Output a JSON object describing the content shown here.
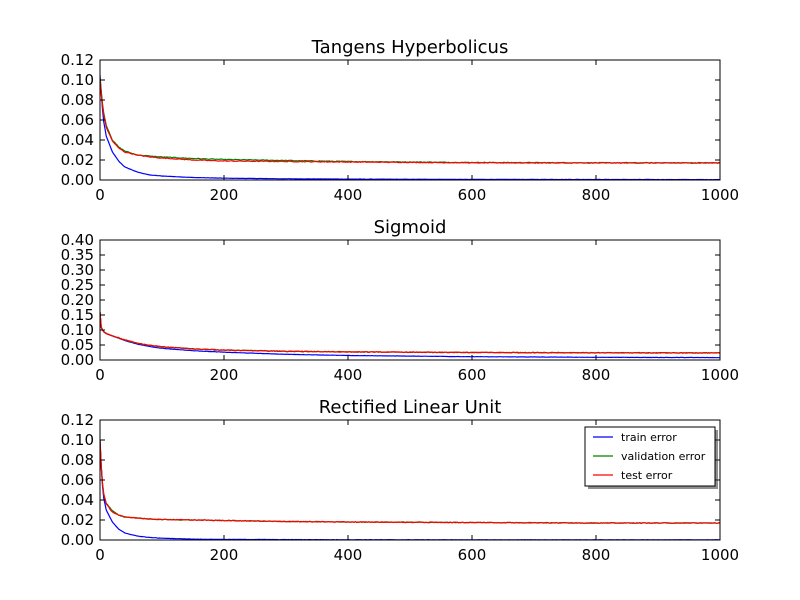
{
  "chart_data": [
    {
      "type": "line",
      "title": "Tangens Hyperbolicus",
      "xlabel": "",
      "ylabel": "",
      "xlim": [
        0,
        1000
      ],
      "ylim": [
        0,
        0.12
      ],
      "x_ticks": [
        0,
        200,
        400,
        600,
        800,
        1000
      ],
      "y_ticks": [
        0.0,
        0.02,
        0.04,
        0.06,
        0.08,
        0.1,
        0.12
      ],
      "y_tick_labels": [
        "0.00",
        "0.02",
        "0.04",
        "0.06",
        "0.08",
        "0.10",
        "0.12"
      ],
      "grid": false,
      "series": [
        {
          "name": "train error",
          "color": "#0000ff",
          "x": [
            0,
            5,
            10,
            20,
            30,
            40,
            60,
            80,
            100,
            150,
            200,
            300,
            400,
            600,
            800,
            1000
          ],
          "y": [
            0.105,
            0.062,
            0.044,
            0.028,
            0.019,
            0.013,
            0.008,
            0.005,
            0.004,
            0.0025,
            0.0018,
            0.0012,
            0.0009,
            0.0006,
            0.0005,
            0.0004
          ]
        },
        {
          "name": "validation error",
          "color": "#008000",
          "x": [
            0,
            5,
            10,
            20,
            30,
            40,
            60,
            80,
            100,
            150,
            200,
            300,
            400,
            600,
            800,
            1000
          ],
          "y": [
            0.102,
            0.07,
            0.055,
            0.04,
            0.033,
            0.029,
            0.025,
            0.024,
            0.023,
            0.0215,
            0.0205,
            0.0195,
            0.0185,
            0.0175,
            0.0172,
            0.0172
          ]
        },
        {
          "name": "test error",
          "color": "#ff0000",
          "x": [
            0,
            5,
            10,
            20,
            30,
            40,
            60,
            80,
            100,
            150,
            200,
            300,
            400,
            600,
            800,
            1000
          ],
          "y": [
            0.1,
            0.068,
            0.053,
            0.039,
            0.032,
            0.028,
            0.025,
            0.023,
            0.022,
            0.02,
            0.019,
            0.0185,
            0.018,
            0.0172,
            0.017,
            0.017
          ]
        }
      ]
    },
    {
      "type": "line",
      "title": "Sigmoid",
      "xlabel": "",
      "ylabel": "",
      "xlim": [
        0,
        1000
      ],
      "ylim": [
        0,
        0.4
      ],
      "x_ticks": [
        0,
        200,
        400,
        600,
        800,
        1000
      ],
      "y_ticks": [
        0.0,
        0.05,
        0.1,
        0.15,
        0.2,
        0.25,
        0.3,
        0.35,
        0.4
      ],
      "y_tick_labels": [
        "0.00",
        "0.05",
        "0.10",
        "0.15",
        "0.20",
        "0.25",
        "0.30",
        "0.35",
        "0.40"
      ],
      "grid": false,
      "series": [
        {
          "name": "train error",
          "color": "#0000ff",
          "x": [
            0,
            2,
            5,
            10,
            20,
            40,
            60,
            80,
            100,
            150,
            200,
            300,
            400,
            600,
            800,
            1000
          ],
          "y": [
            0.16,
            0.11,
            0.095,
            0.088,
            0.08,
            0.065,
            0.053,
            0.045,
            0.039,
            0.031,
            0.026,
            0.019,
            0.015,
            0.011,
            0.009,
            0.008
          ]
        },
        {
          "name": "validation error",
          "color": "#008000",
          "x": [
            0,
            2,
            5,
            10,
            20,
            40,
            60,
            80,
            100,
            150,
            200,
            300,
            400,
            600,
            800,
            1000
          ],
          "y": [
            0.16,
            0.11,
            0.096,
            0.089,
            0.081,
            0.067,
            0.056,
            0.049,
            0.044,
            0.037,
            0.033,
            0.029,
            0.027,
            0.025,
            0.024,
            0.0235
          ]
        },
        {
          "name": "test error",
          "color": "#ff0000",
          "x": [
            0,
            2,
            5,
            10,
            20,
            40,
            60,
            80,
            100,
            150,
            200,
            300,
            400,
            600,
            800,
            1000
          ],
          "y": [
            0.16,
            0.11,
            0.096,
            0.089,
            0.081,
            0.067,
            0.056,
            0.049,
            0.044,
            0.037,
            0.033,
            0.029,
            0.027,
            0.025,
            0.024,
            0.0235
          ]
        }
      ]
    },
    {
      "type": "line",
      "title": "Rectified Linear Unit",
      "xlabel": "",
      "ylabel": "",
      "xlim": [
        0,
        1000
      ],
      "ylim": [
        0,
        0.12
      ],
      "x_ticks": [
        0,
        200,
        400,
        600,
        800,
        1000
      ],
      "y_ticks": [
        0.0,
        0.02,
        0.04,
        0.06,
        0.08,
        0.1,
        0.12
      ],
      "y_tick_labels": [
        "0.00",
        "0.02",
        "0.04",
        "0.06",
        "0.08",
        "0.10",
        "0.12"
      ],
      "grid": false,
      "legend": {
        "placement": "upper-right",
        "entries": [
          "train error",
          "validation error",
          "test error"
        ]
      },
      "series": [
        {
          "name": "train error",
          "color": "#0000ff",
          "x": [
            0,
            3,
            6,
            10,
            20,
            30,
            40,
            60,
            80,
            100,
            150,
            200,
            300,
            400,
            600,
            800,
            1000
          ],
          "y": [
            0.1,
            0.06,
            0.042,
            0.03,
            0.018,
            0.011,
            0.007,
            0.004,
            0.0025,
            0.0018,
            0.0009,
            0.0006,
            0.0004,
            0.0003,
            0.0002,
            0.0002,
            0.0002
          ]
        },
        {
          "name": "validation error",
          "color": "#008000",
          "x": [
            0,
            3,
            6,
            10,
            20,
            30,
            40,
            60,
            80,
            100,
            150,
            200,
            300,
            400,
            600,
            800,
            1000
          ],
          "y": [
            0.1,
            0.062,
            0.046,
            0.037,
            0.029,
            0.025,
            0.023,
            0.022,
            0.021,
            0.0205,
            0.02,
            0.0195,
            0.0185,
            0.018,
            0.0175,
            0.017,
            0.017
          ]
        },
        {
          "name": "test error",
          "color": "#ff0000",
          "x": [
            0,
            3,
            6,
            10,
            20,
            30,
            40,
            60,
            80,
            100,
            150,
            200,
            300,
            400,
            600,
            800,
            1000
          ],
          "y": [
            0.1,
            0.062,
            0.046,
            0.036,
            0.028,
            0.025,
            0.023,
            0.022,
            0.021,
            0.0205,
            0.02,
            0.0195,
            0.0185,
            0.018,
            0.0175,
            0.017,
            0.017
          ]
        }
      ]
    }
  ]
}
